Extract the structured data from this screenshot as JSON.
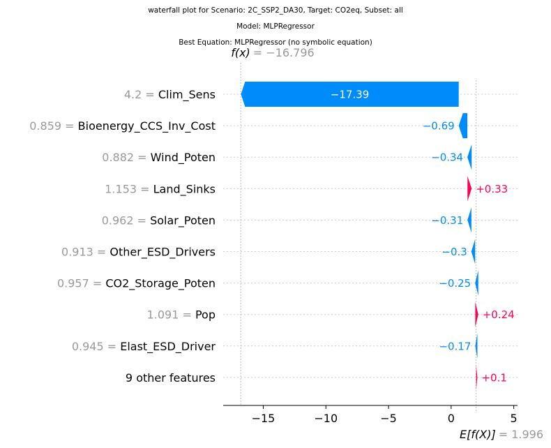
{
  "chart_data": {
    "type": "waterfall",
    "title_lines": [
      "waterfall plot for Scenario: 2C_SSP2_DA30, Target: CO2eq, Subset: all",
      "Model: MLPRegressor",
      "Best Equation: MLPRegressor (no symbolic equation)"
    ],
    "fx_label": "f(x)",
    "fx_value": "= −16.796",
    "efx_label": "E[f(X)]",
    "efx_value": "= 1.996",
    "fx": -16.796,
    "base": 1.996,
    "xlim": [
      -18.2,
      5.3
    ],
    "xticks": [
      {
        "value": -15,
        "label": "−15"
      },
      {
        "value": -10,
        "label": "−10"
      },
      {
        "value": -5,
        "label": "−5"
      },
      {
        "value": 0,
        "label": "0"
      },
      {
        "value": 5,
        "label": "5"
      }
    ],
    "features": [
      {
        "value": "4.2",
        "eq": "=",
        "name": "Clim_Sens",
        "contribution": -17.39,
        "label": "−17.39"
      },
      {
        "value": "0.859",
        "eq": "=",
        "name": "Bioenergy_CCS_Inv_Cost",
        "contribution": -0.69,
        "label": "−0.69"
      },
      {
        "value": "0.882",
        "eq": "=",
        "name": "Wind_Poten",
        "contribution": -0.34,
        "label": "−0.34"
      },
      {
        "value": "1.153",
        "eq": "=",
        "name": "Land_Sinks",
        "contribution": 0.33,
        "label": "+0.33"
      },
      {
        "value": "0.962",
        "eq": "=",
        "name": "Solar_Poten",
        "contribution": -0.31,
        "label": "−0.31"
      },
      {
        "value": "0.913",
        "eq": "=",
        "name": "Other_ESD_Drivers",
        "contribution": -0.3,
        "label": "−0.3"
      },
      {
        "value": "0.957",
        "eq": "=",
        "name": "CO2_Storage_Poten",
        "contribution": -0.25,
        "label": "−0.25"
      },
      {
        "value": "1.091",
        "eq": "=",
        "name": "Pop",
        "contribution": 0.24,
        "label": "+0.24"
      },
      {
        "value": "0.945",
        "eq": "=",
        "name": "Elast_ESD_Driver",
        "contribution": -0.17,
        "label": "−0.17"
      },
      {
        "value": "",
        "eq": "",
        "name": "9 other features",
        "contribution": 0.1,
        "label": "+0.1"
      }
    ],
    "colors": {
      "negative": "#008bfb",
      "positive": "#ff0051",
      "feature_value": "#999999",
      "gridline": "#cccccc"
    }
  }
}
